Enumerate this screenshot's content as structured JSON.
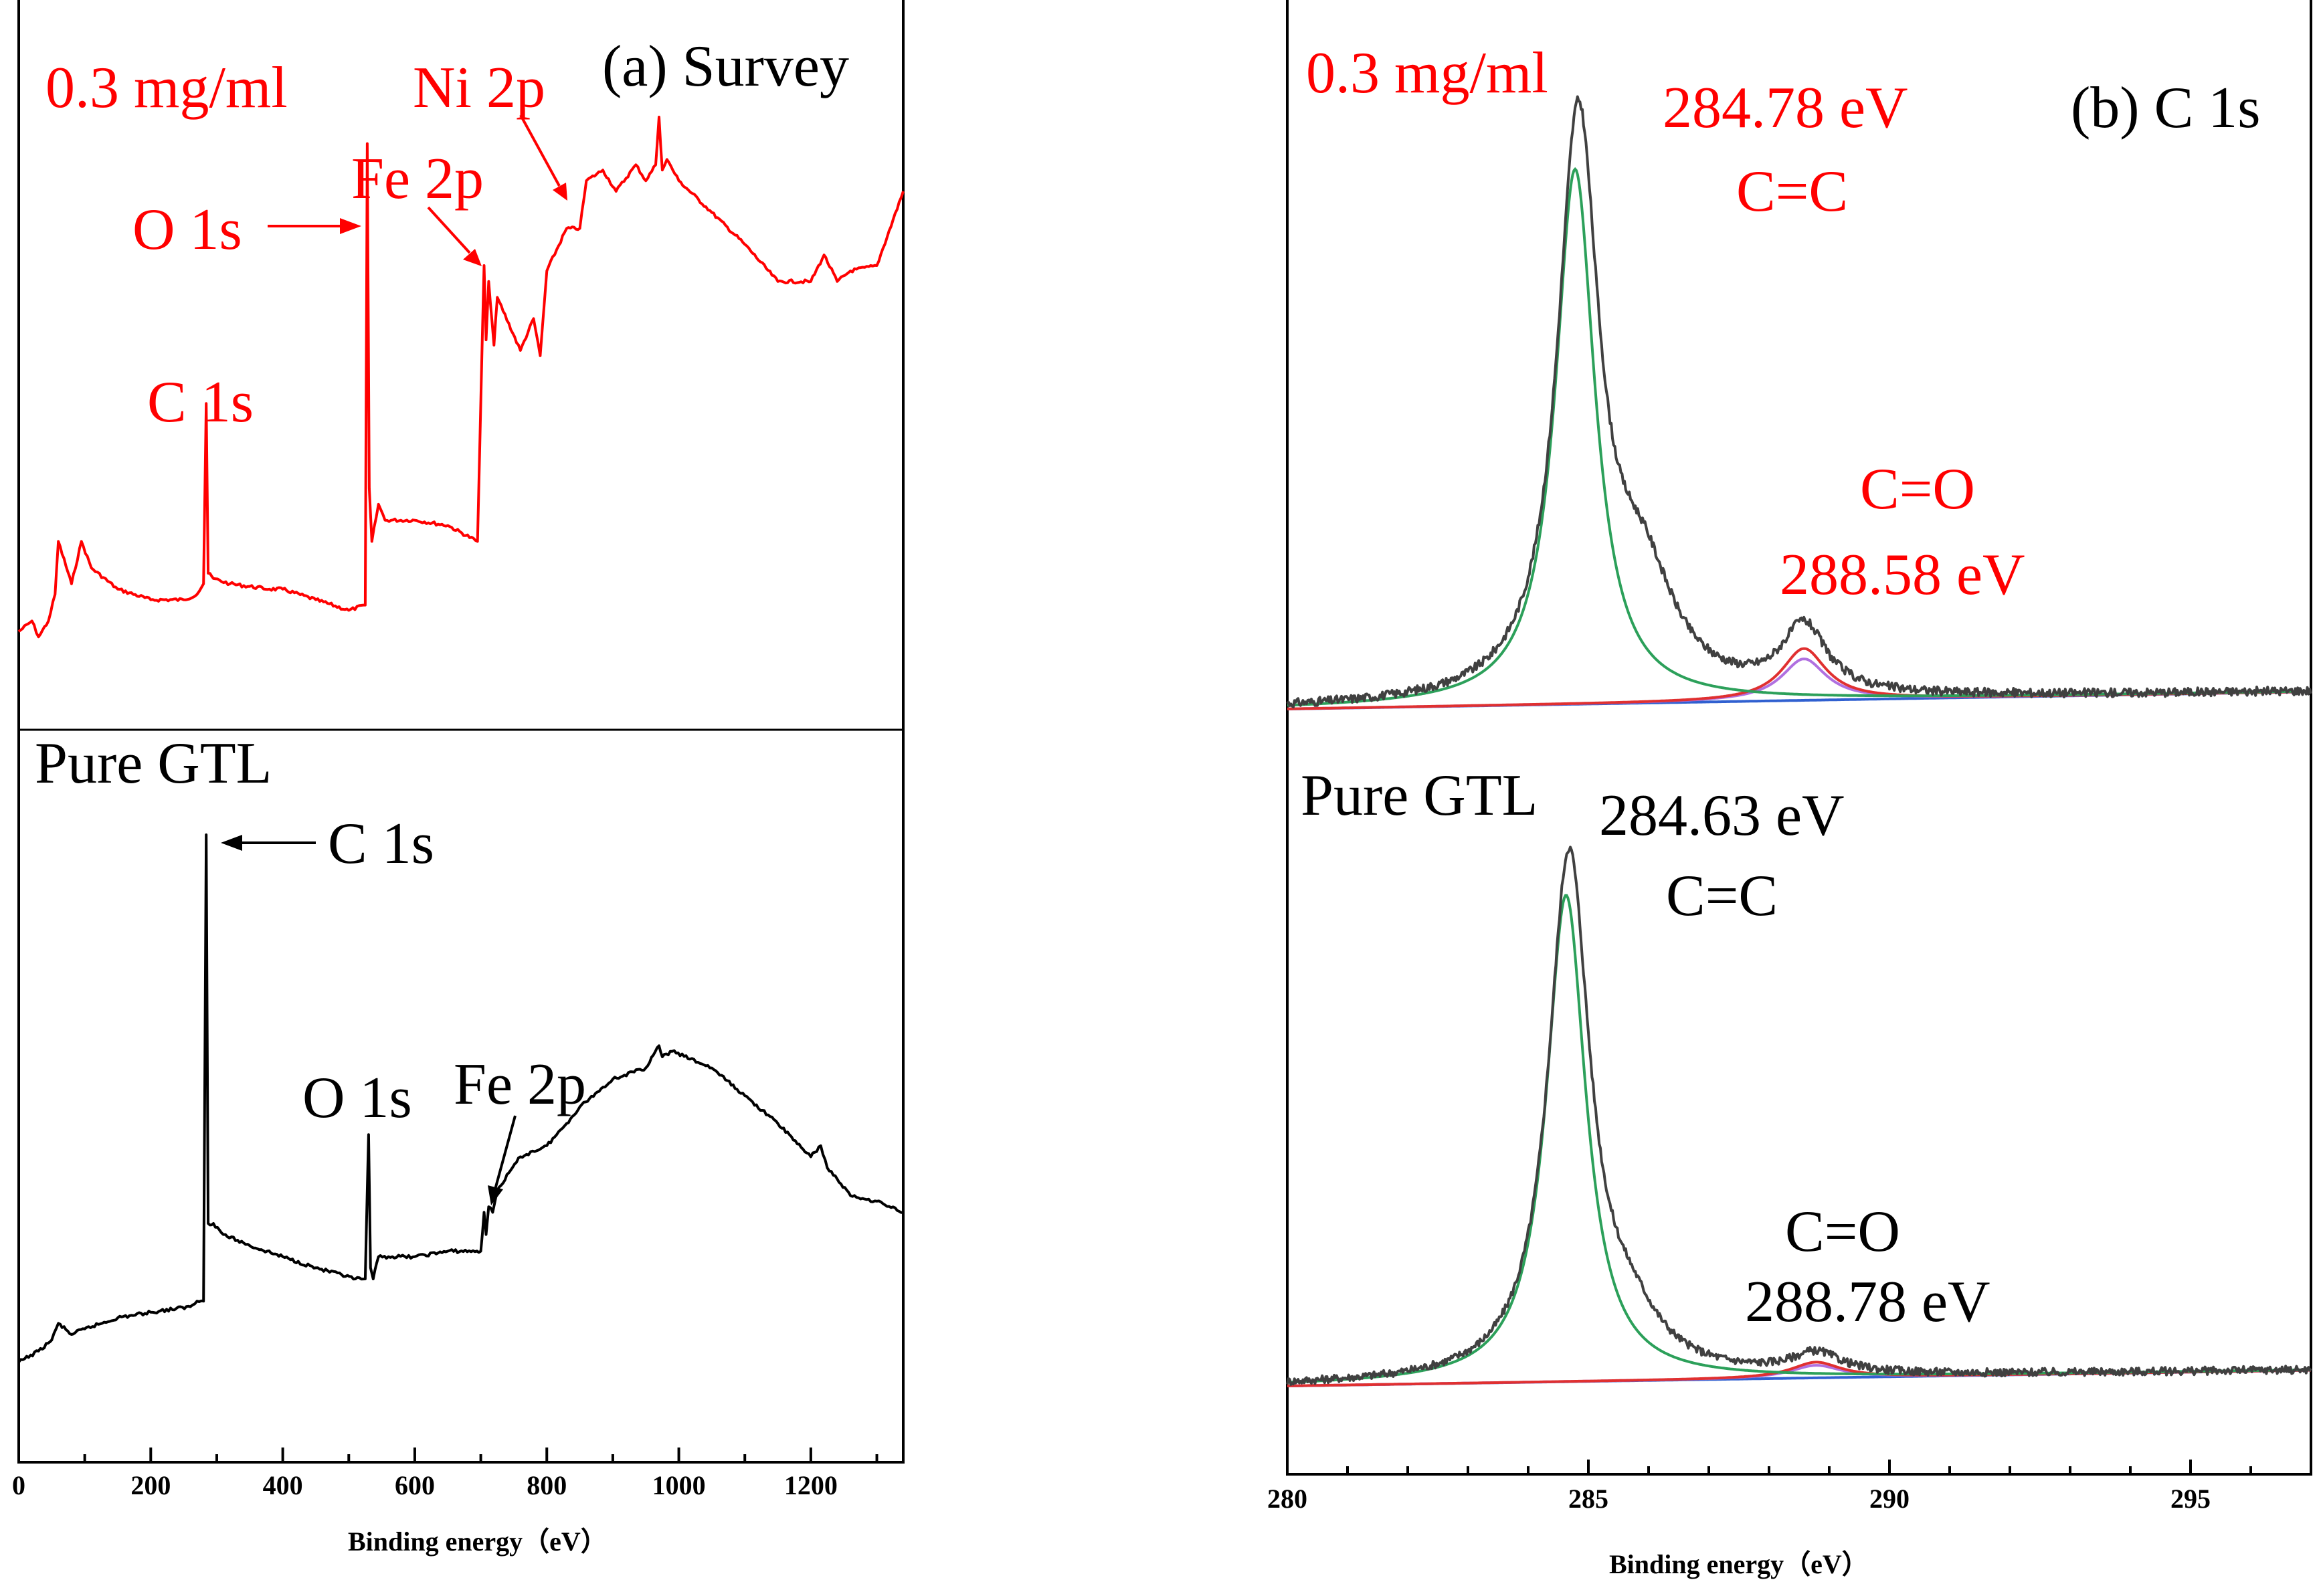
{
  "chart_data": [
    {
      "type": "line",
      "panel": "a",
      "title": "(a) Survey",
      "xlabel": "Binding energy（eV）",
      "ylabel": "",
      "xlim": [
        0,
        1340
      ],
      "xticks": [
        0,
        200,
        400,
        600,
        800,
        1000,
        1200
      ],
      "colors": {
        "top": "#ff0000",
        "bottom": "#000000"
      },
      "series": [
        {
          "name": "0.3 mg/ml",
          "color": "#ff0000",
          "x": [
            0,
            20,
            30,
            45,
            55,
            60,
            80,
            95,
            110,
            150,
            200,
            250,
            270,
            280,
            284,
            287,
            295,
            320,
            380,
            400,
            450,
            500,
            525,
            528,
            531,
            535,
            545,
            555,
            600,
            650,
            695,
            705,
            708,
            712,
            720,
            725,
            760,
            780,
            790,
            800,
            830,
            850,
            860,
            885,
            905,
            935,
            950,
            965,
            970,
            975,
            982,
            1000,
            1050,
            1100,
            1150,
            1200,
            1220,
            1240,
            1260,
            1300,
            1340
          ],
          "y": [
            0.03,
            0.05,
            0.02,
            0.05,
            0.1,
            0.2,
            0.12,
            0.2,
            0.15,
            0.11,
            0.09,
            0.09,
            0.1,
            0.12,
            0.46,
            0.14,
            0.13,
            0.12,
            0.11,
            0.11,
            0.09,
            0.07,
            0.08,
            0.95,
            0.3,
            0.2,
            0.27,
            0.24,
            0.24,
            0.23,
            0.2,
            0.72,
            0.58,
            0.69,
            0.57,
            0.66,
            0.56,
            0.62,
            0.55,
            0.71,
            0.79,
            0.79,
            0.88,
            0.9,
            0.86,
            0.91,
            0.88,
            0.91,
            1.0,
            0.9,
            0.92,
            0.88,
            0.82,
            0.76,
            0.69,
            0.69,
            0.74,
            0.69,
            0.71,
            0.72,
            0.86
          ]
        },
        {
          "name": "Pure GTL",
          "color": "#000000",
          "x": [
            0,
            30,
            50,
            60,
            80,
            100,
            150,
            200,
            260,
            270,
            280,
            284,
            287,
            295,
            310,
            350,
            400,
            450,
            510,
            525,
            530,
            533,
            537,
            545,
            560,
            600,
            650,
            700,
            705,
            708,
            712,
            718,
            725,
            760,
            800,
            830,
            850,
            900,
            950,
            970,
            975,
            990,
            1050,
            1100,
            1150,
            1200,
            1215,
            1225,
            1240,
            1260,
            1300,
            1340
          ],
          "y": [
            0.05,
            0.07,
            0.09,
            0.12,
            0.1,
            0.11,
            0.13,
            0.14,
            0.15,
            0.16,
            0.16,
            1.0,
            0.3,
            0.3,
            0.28,
            0.26,
            0.24,
            0.22,
            0.2,
            0.2,
            0.46,
            0.22,
            0.2,
            0.24,
            0.24,
            0.24,
            0.25,
            0.25,
            0.32,
            0.28,
            0.33,
            0.32,
            0.36,
            0.42,
            0.44,
            0.48,
            0.51,
            0.56,
            0.58,
            0.62,
            0.6,
            0.61,
            0.58,
            0.53,
            0.48,
            0.42,
            0.44,
            0.4,
            0.38,
            0.35,
            0.34,
            0.32
          ]
        }
      ],
      "annotations": {
        "top_label": "0.3 mg/ml",
        "survey_title": "(a) Survey",
        "c1s_top": "C 1s",
        "o1s_top": "O 1s",
        "fe2p_top": "Fe 2p",
        "ni2p_top": "Ni 2p",
        "bottom_label": "Pure GTL",
        "c1s_bottom": "C 1s",
        "o1s_bottom": "O 1s",
        "fe2p_bottom": "Fe 2p"
      }
    },
    {
      "type": "line",
      "panel": "b",
      "title": "(b) C 1s",
      "xlabel": "Binding energy（eV）",
      "ylabel": "",
      "xlim": [
        280,
        297
      ],
      "xticks": [
        280,
        285,
        290,
        295
      ],
      "colors": {
        "envelope": "#404040",
        "cc_fit": "#2ca05a",
        "co_fit": "#e03030",
        "co_fit2": "#b070e0",
        "baseline": "#3060d0",
        "label_top": "#ff0000",
        "label_bottom": "#000000"
      },
      "series": [
        {
          "name": "0.3 mg/ml",
          "peaks": [
            {
              "label": "C=C",
              "center_eV": 284.78,
              "height": 1.0,
              "fwhm_eV": 0.8
            },
            {
              "label": "C=O",
              "center_eV": 288.58,
              "height": 0.09,
              "fwhm_eV": 0.9
            }
          ],
          "shoulder": [
            {
              "center_eV": 285.9,
              "height": 0.18,
              "fwhm_eV": 1.3
            }
          ],
          "baseline": [
            0.0,
            0.03
          ]
        },
        {
          "name": "Pure GTL",
          "peaks": [
            {
              "label": "C=C",
              "center_eV": 284.63,
              "height": 1.0,
              "fwhm_eV": 0.8
            },
            {
              "label": "C=O",
              "center_eV": 288.78,
              "height": 0.03,
              "fwhm_eV": 1.0
            }
          ],
          "shoulder": [
            {
              "center_eV": 285.7,
              "height": 0.08,
              "fwhm_eV": 1.2
            }
          ],
          "baseline": [
            0.0,
            0.03
          ]
        }
      ],
      "annotations": {
        "top_label": "0.3 mg/ml",
        "panel_title": "(b) C 1s",
        "top_cc_energy": "284.78 eV",
        "top_cc_bond": "C=C",
        "top_co_bond": "C=O",
        "top_co_energy": "288.58 eV",
        "bottom_label": "Pure GTL",
        "bottom_cc_energy": "284.63 eV",
        "bottom_cc_bond": "C=C",
        "bottom_co_bond": "C=O",
        "bottom_co_energy": "288.78 eV"
      }
    }
  ]
}
